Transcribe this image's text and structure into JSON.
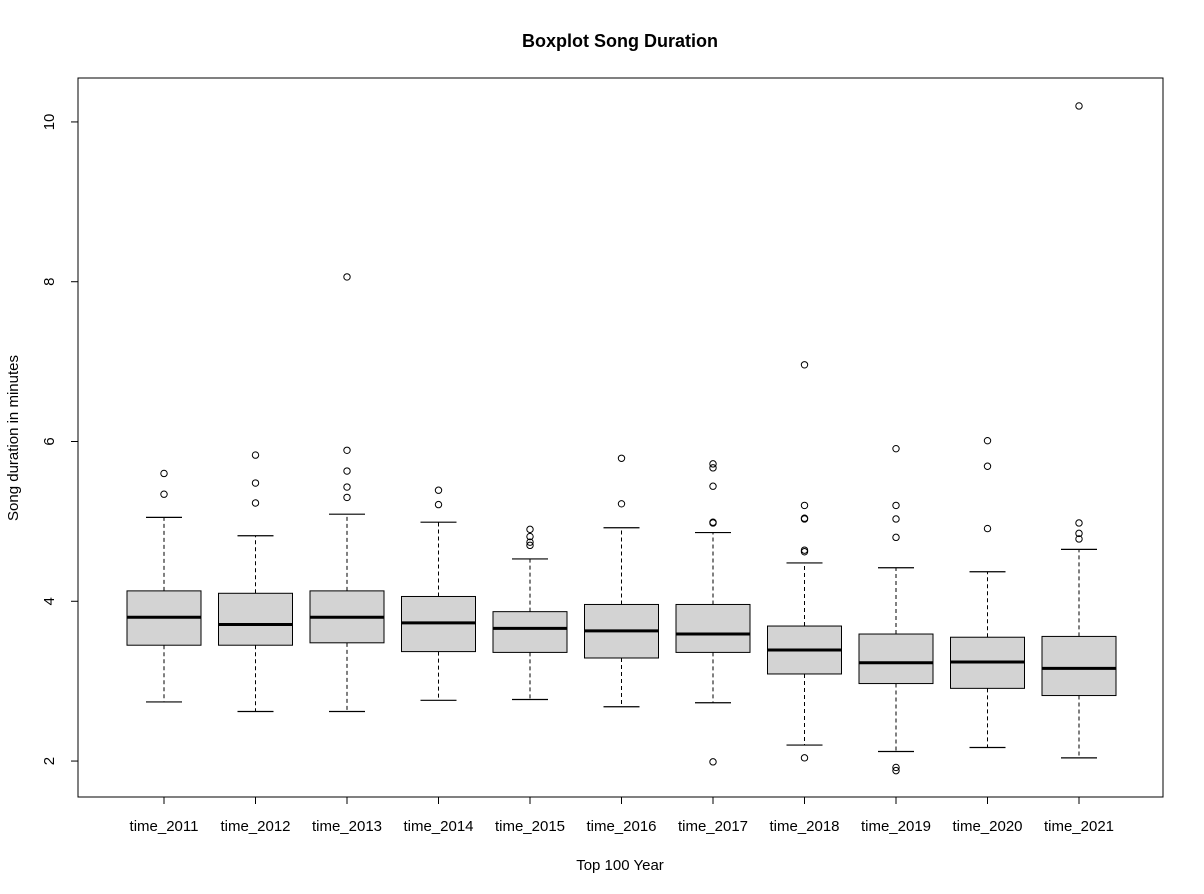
{
  "chart_data": {
    "type": "boxplot",
    "title": "Boxplot Song Duration",
    "xlabel": "Top 100 Year",
    "ylabel": "Song duration in minutes",
    "ylim": [
      1.55,
      10.55
    ],
    "yticks": [
      2,
      4,
      6,
      8,
      10
    ],
    "grid": false,
    "box_fill": "#d3d3d3",
    "categories": [
      "time_2011",
      "time_2012",
      "time_2013",
      "time_2014",
      "time_2015",
      "time_2016",
      "time_2017",
      "time_2018",
      "time_2019",
      "time_2020",
      "time_2021"
    ],
    "boxes": [
      {
        "whisker_low": 2.74,
        "q1": 3.45,
        "median": 3.8,
        "q3": 4.13,
        "whisker_high": 5.05,
        "outliers": [
          5.34,
          5.6
        ]
      },
      {
        "whisker_low": 2.62,
        "q1": 3.45,
        "median": 3.71,
        "q3": 4.1,
        "whisker_high": 4.82,
        "outliers": [
          5.23,
          5.48,
          5.83
        ]
      },
      {
        "whisker_low": 2.62,
        "q1": 3.48,
        "median": 3.8,
        "q3": 4.13,
        "whisker_high": 5.09,
        "outliers": [
          5.3,
          5.43,
          5.63,
          5.89,
          8.06
        ]
      },
      {
        "whisker_low": 2.76,
        "q1": 3.37,
        "median": 3.73,
        "q3": 4.06,
        "whisker_high": 4.99,
        "outliers": [
          5.21,
          5.39
        ]
      },
      {
        "whisker_low": 2.77,
        "q1": 3.36,
        "median": 3.66,
        "q3": 3.87,
        "whisker_high": 4.53,
        "outliers": [
          4.7,
          4.74,
          4.81,
          4.9
        ]
      },
      {
        "whisker_low": 2.68,
        "q1": 3.29,
        "median": 3.63,
        "q3": 3.96,
        "whisker_high": 4.92,
        "outliers": [
          5.22,
          5.79
        ]
      },
      {
        "whisker_low": 2.73,
        "q1": 3.36,
        "median": 3.59,
        "q3": 3.96,
        "whisker_high": 4.86,
        "outliers": [
          1.99,
          4.98,
          4.99,
          5.44,
          5.67,
          5.72
        ]
      },
      {
        "whisker_low": 2.2,
        "q1": 3.09,
        "median": 3.39,
        "q3": 3.69,
        "whisker_high": 4.48,
        "outliers": [
          2.04,
          4.62,
          4.64,
          5.03,
          5.04,
          5.2,
          6.96
        ]
      },
      {
        "whisker_low": 2.12,
        "q1": 2.97,
        "median": 3.23,
        "q3": 3.59,
        "whisker_high": 4.42,
        "outliers": [
          1.88,
          1.92,
          4.8,
          5.03,
          5.2,
          5.91
        ]
      },
      {
        "whisker_low": 2.17,
        "q1": 2.91,
        "median": 3.24,
        "q3": 3.55,
        "whisker_high": 4.37,
        "outliers": [
          4.91,
          5.69,
          6.01
        ]
      },
      {
        "whisker_low": 2.04,
        "q1": 2.82,
        "median": 3.16,
        "q3": 3.56,
        "whisker_high": 4.65,
        "outliers": [
          4.78,
          4.85,
          4.98,
          10.2
        ]
      }
    ]
  }
}
